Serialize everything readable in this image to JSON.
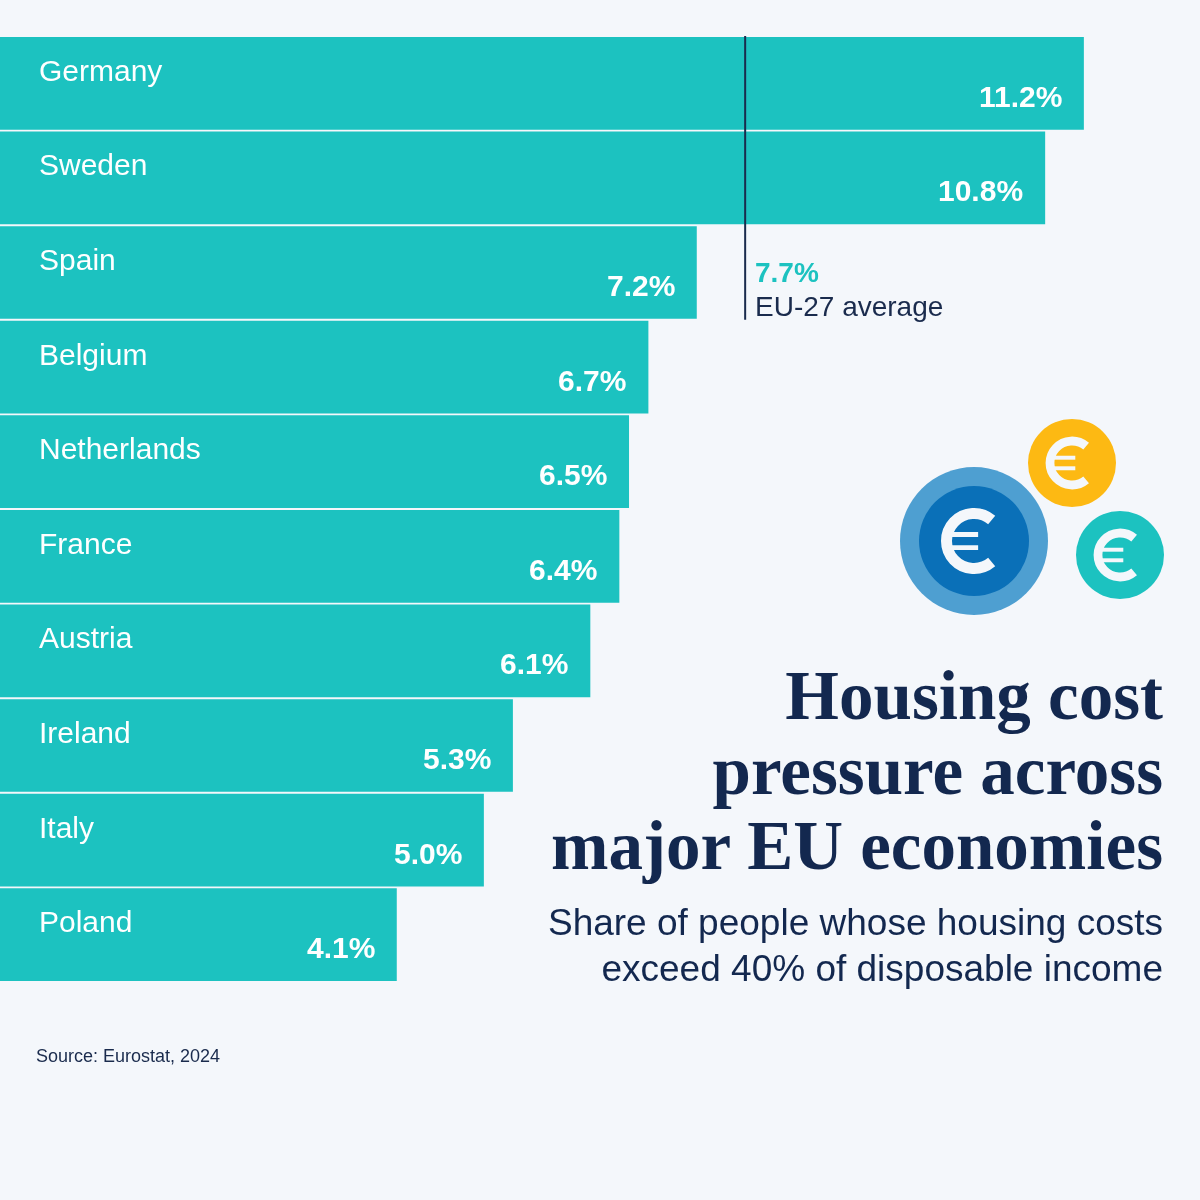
{
  "chart_data": {
    "type": "bar",
    "orientation": "horizontal",
    "title": "Housing cost pressure across major EU economies",
    "subtitle": "Share of people whose housing costs exceed 40% of disposable income",
    "categories": [
      "Germany",
      "Sweden",
      "Spain",
      "Belgium",
      "Netherlands",
      "France",
      "Austria",
      "Ireland",
      "Italy",
      "Poland"
    ],
    "values": [
      11.2,
      10.8,
      7.2,
      6.7,
      6.5,
      6.4,
      6.1,
      5.3,
      5.0,
      4.1
    ],
    "value_labels": [
      "11.2%",
      "10.8%",
      "7.2%",
      "6.7%",
      "6.5%",
      "6.4%",
      "6.1%",
      "5.3%",
      "5.0%",
      "4.1%"
    ],
    "color": "#1cc2c0",
    "xlim": [
      0,
      12.4
    ],
    "tick_labels": "y",
    "ref_lines": [
      {
        "axis": "x",
        "value": 7.7,
        "label": "EU-27 average",
        "color": "#1a2b4d"
      }
    ],
    "annotations": [
      {
        "text": "7.7%",
        "x": 7.7,
        "y": "Spain"
      },
      "Source: Eurostat, 2024"
    ]
  }
}
